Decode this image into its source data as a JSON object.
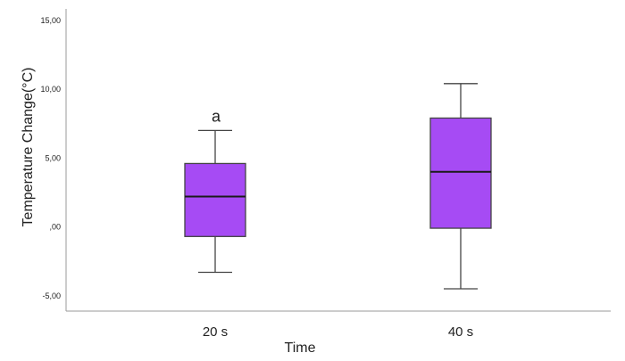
{
  "chart_data": {
    "type": "box",
    "xlabel": "Time",
    "ylabel": "Temperature Change(°C)",
    "ylim": [
      -7,
      15.5
    ],
    "yticks": [
      {
        "value": 15,
        "label": "15,00"
      },
      {
        "value": 10,
        "label": "10,00"
      },
      {
        "value": 5,
        "label": "5,00"
      },
      {
        "value": 0,
        "label": ",00"
      },
      {
        "value": -5,
        "label": "-5,00"
      }
    ],
    "categories": [
      "20 s",
      "40 s"
    ],
    "boxes": [
      {
        "category": "20 s",
        "min": -3.3,
        "q1": -0.7,
        "median": 2.2,
        "q3": 4.6,
        "max": 7.0,
        "annotation": "a"
      },
      {
        "category": "40 s",
        "min": -4.5,
        "q1": -0.1,
        "median": 4.0,
        "q3": 7.9,
        "max": 10.4,
        "annotation": ""
      }
    ],
    "box_color": "#a64bf4",
    "box_edge_color": "#444444",
    "grid": false
  }
}
